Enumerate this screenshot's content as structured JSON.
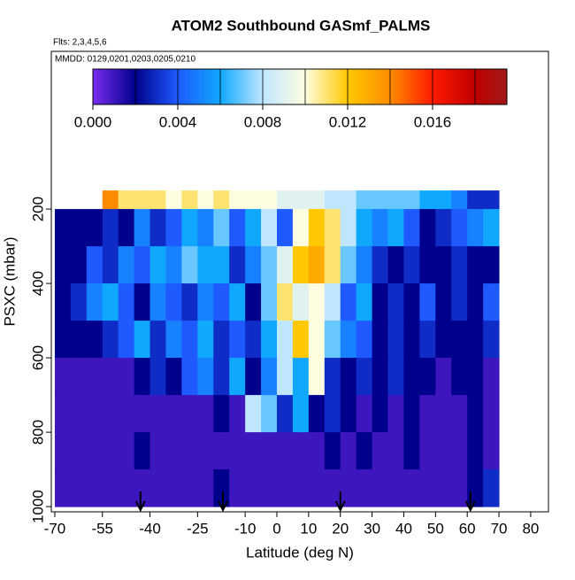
{
  "chart_data": {
    "type": "heatmap",
    "title": "ATOM2 Southbound GASmf_PALMS",
    "subtitle": "Flts: 2,3,4,5,6",
    "annotation": "MMDD: 0129,0201,0203,0205,0210",
    "x_label": "Latitude (deg N)",
    "y_label": "PSXC (mbar)",
    "xlim": [
      -71.1,
      85.6
    ],
    "xticks": [
      -70,
      -55,
      -40,
      -25,
      -10,
      0,
      10,
      20,
      30,
      40,
      50,
      60,
      70,
      80
    ],
    "ylim": [
      1014,
      -224
    ],
    "yticks": [
      200,
      400,
      600,
      800,
      1000
    ],
    "x_edges": [
      -70,
      -65,
      -60,
      -55,
      -50,
      -45,
      -40,
      -35,
      -30,
      -25,
      -20,
      -15,
      -10,
      -5,
      0,
      5,
      10,
      15,
      20,
      25,
      30,
      35,
      40,
      45,
      50,
      55,
      60,
      65,
      70
    ],
    "y_edges": [
      150,
      200,
      300,
      400,
      500,
      600,
      700,
      800,
      900,
      1000
    ],
    "values": [
      [
        null,
        null,
        null,
        0.014,
        0.011,
        0.011,
        0.011,
        0.01,
        0.011,
        0.01,
        0.011,
        0.01,
        0.01,
        0.01,
        0.009,
        0.009,
        0.009,
        0.008,
        0.008,
        0.007,
        0.007,
        0.007,
        0.007,
        0.006,
        0.006,
        0.005,
        0.003,
        0.003
      ],
      [
        0.002,
        0.002,
        0.002,
        0.003,
        0.002,
        0.005,
        0.003,
        0.004,
        0.006,
        0.005,
        0.007,
        0.004,
        0.006,
        0.008,
        0.004,
        0.01,
        0.012,
        0.011,
        0.008,
        0.006,
        0.005,
        0.006,
        0.004,
        0.002,
        0.003,
        0.004,
        0.005,
        0.006
      ],
      [
        0.002,
        0.002,
        0.004,
        0.003,
        0.005,
        0.004,
        0.006,
        0.005,
        0.007,
        0.006,
        0.006,
        0.003,
        0.005,
        0.007,
        0.009,
        0.012,
        0.013,
        0.011,
        0.007,
        0.005,
        0.003,
        0.002,
        0.003,
        0.002,
        0.002,
        0.003,
        0.002,
        0.002
      ],
      [
        0.002,
        0.003,
        0.005,
        0.006,
        0.004,
        0.002,
        0.005,
        0.004,
        0.003,
        0.005,
        0.004,
        0.006,
        0.002,
        0.007,
        0.011,
        0.009,
        0.01,
        0.008,
        0.004,
        0.006,
        0.002,
        0.003,
        0.002,
        0.004,
        0.002,
        0.003,
        0.002,
        0.004
      ],
      [
        0.002,
        0.002,
        0.002,
        0.003,
        0.004,
        0.006,
        0.003,
        0.005,
        0.004,
        0.006,
        0.003,
        0.004,
        0.003,
        0.006,
        0.008,
        0.012,
        0.01,
        0.007,
        0.005,
        0.004,
        0.002,
        0.003,
        0.002,
        0.003,
        0.002,
        0.002,
        0.002,
        0.003
      ],
      [
        0.001,
        0.001,
        0.001,
        0.001,
        0.001,
        0.002,
        0.003,
        0.002,
        0.004,
        0.005,
        0.003,
        0.006,
        0.002,
        0.005,
        0.008,
        0.006,
        0.01,
        0.003,
        0.002,
        0.003,
        0.002,
        0.003,
        0.002,
        0.002,
        0.001,
        0.002,
        0.002,
        0.001
      ],
      [
        0.001,
        0.001,
        0.001,
        0.001,
        0.001,
        0.001,
        0.001,
        0.001,
        0.001,
        0.001,
        0.002,
        0.001,
        0.008,
        0.007,
        0.003,
        0.006,
        0.002,
        0.003,
        0.002,
        0.001,
        0.002,
        0.001,
        0.002,
        0.001,
        0.001,
        0.001,
        0.002,
        0.001
      ],
      [
        0.001,
        0.001,
        0.001,
        0.001,
        0.001,
        0.002,
        0.001,
        0.001,
        0.001,
        0.001,
        0.001,
        0.001,
        0.001,
        0.001,
        0.001,
        0.001,
        0.001,
        0.002,
        0.001,
        0.002,
        0.001,
        0.001,
        0.002,
        0.001,
        0.001,
        0.001,
        0.002,
        0.001
      ],
      [
        0.001,
        0.001,
        0.001,
        0.001,
        0.001,
        0.001,
        0.001,
        0.001,
        0.001,
        0.001,
        0.002,
        0.001,
        0.001,
        0.001,
        0.001,
        0.001,
        0.001,
        0.001,
        0.001,
        0.001,
        0.001,
        0.001,
        0.001,
        0.001,
        0.001,
        0.001,
        0.002,
        0.003
      ]
    ],
    "arrows_x": [
      -43,
      -17,
      20,
      61
    ],
    "colorbar": {
      "lim": [
        0,
        0.0195
      ],
      "ticks": [
        {
          "value": 0,
          "label": "0.000"
        },
        0.004,
        0.008,
        0.012,
        0.016
      ],
      "stops": [
        0,
        0.002,
        0.004,
        0.006,
        0.008,
        0.01,
        0.012,
        0.014,
        0.016,
        0.018,
        0.0195
      ],
      "colors": [
        "#7b2cf0",
        "#00008c",
        "#1e5aff",
        "#10a8ff",
        "#bfe6ff",
        "#fffde0",
        "#ffc800",
        "#ff8c00",
        "#ff1a00",
        "#c00000",
        "#a01818"
      ]
    }
  }
}
